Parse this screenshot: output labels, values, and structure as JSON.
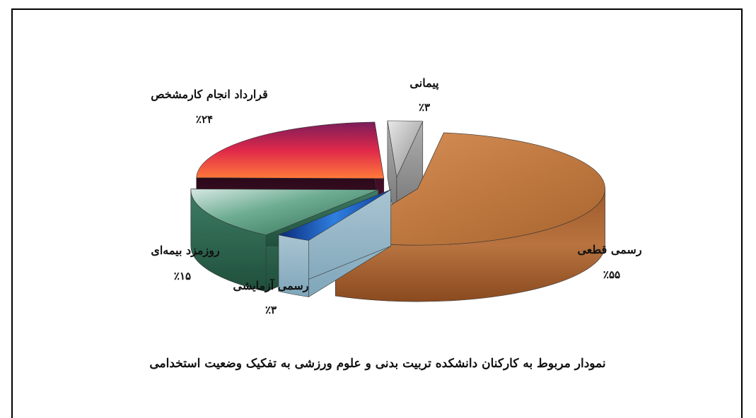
{
  "chart_data": {
    "type": "pie",
    "title": "نمودار مربوط به کارکنان دانشکده تربیت بدنی و علوم ورزشی به تفکیک وضعیت استخدامی",
    "slices": [
      {
        "label": "رسمی قطعی",
        "value": 55,
        "value_label": "٪۵۵",
        "color": "#b9743e"
      },
      {
        "label": "رسمی آزمایشی",
        "value": 3,
        "value_label": "٪۳",
        "color": "#1e5fb8"
      },
      {
        "label": "روزمزد بیمه‌ای",
        "value": 15,
        "value_label": "٪۱۵",
        "color": "#4f9a86"
      },
      {
        "label": "قرارداد انجام کارمشخص",
        "value": 24,
        "value_label": "٪۲۴",
        "color": "#c8203a"
      },
      {
        "label": "پیمانی",
        "value": 3,
        "value_label": "٪۳",
        "color": "#9a9a9a"
      }
    ],
    "style": "3d-exploded",
    "legend": "none"
  }
}
